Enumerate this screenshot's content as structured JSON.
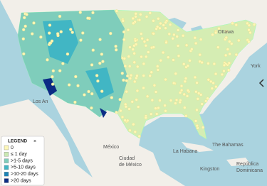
{
  "map": {
    "labels": {
      "ottawa": "Ottawa",
      "new_york": "York",
      "los_angeles": "Los An",
      "mexico": "México",
      "cdmx_1": "Ciudad",
      "cdmx_2": "de México",
      "la_habana": "La Habana",
      "bahamas": "The Bahamas",
      "kingston": "Kingston",
      "rd_1": "República",
      "rd_2": "Dominicana"
    },
    "legend": {
      "title": "LEGEND",
      "close": "×",
      "items": [
        {
          "label": "0",
          "color": "#fdf7b6"
        },
        {
          "label": "≤ 1 day",
          "color": "#c9e8b2"
        },
        {
          "label": ">1-5 days",
          "color": "#7fcdbb"
        },
        {
          "label": ">5-10 days",
          "color": "#41b6c4"
        },
        {
          "label": ">10-20 days",
          "color": "#1d84b5"
        },
        {
          "label": ">20 days",
          "color": "#0c2c84"
        }
      ]
    }
  }
}
